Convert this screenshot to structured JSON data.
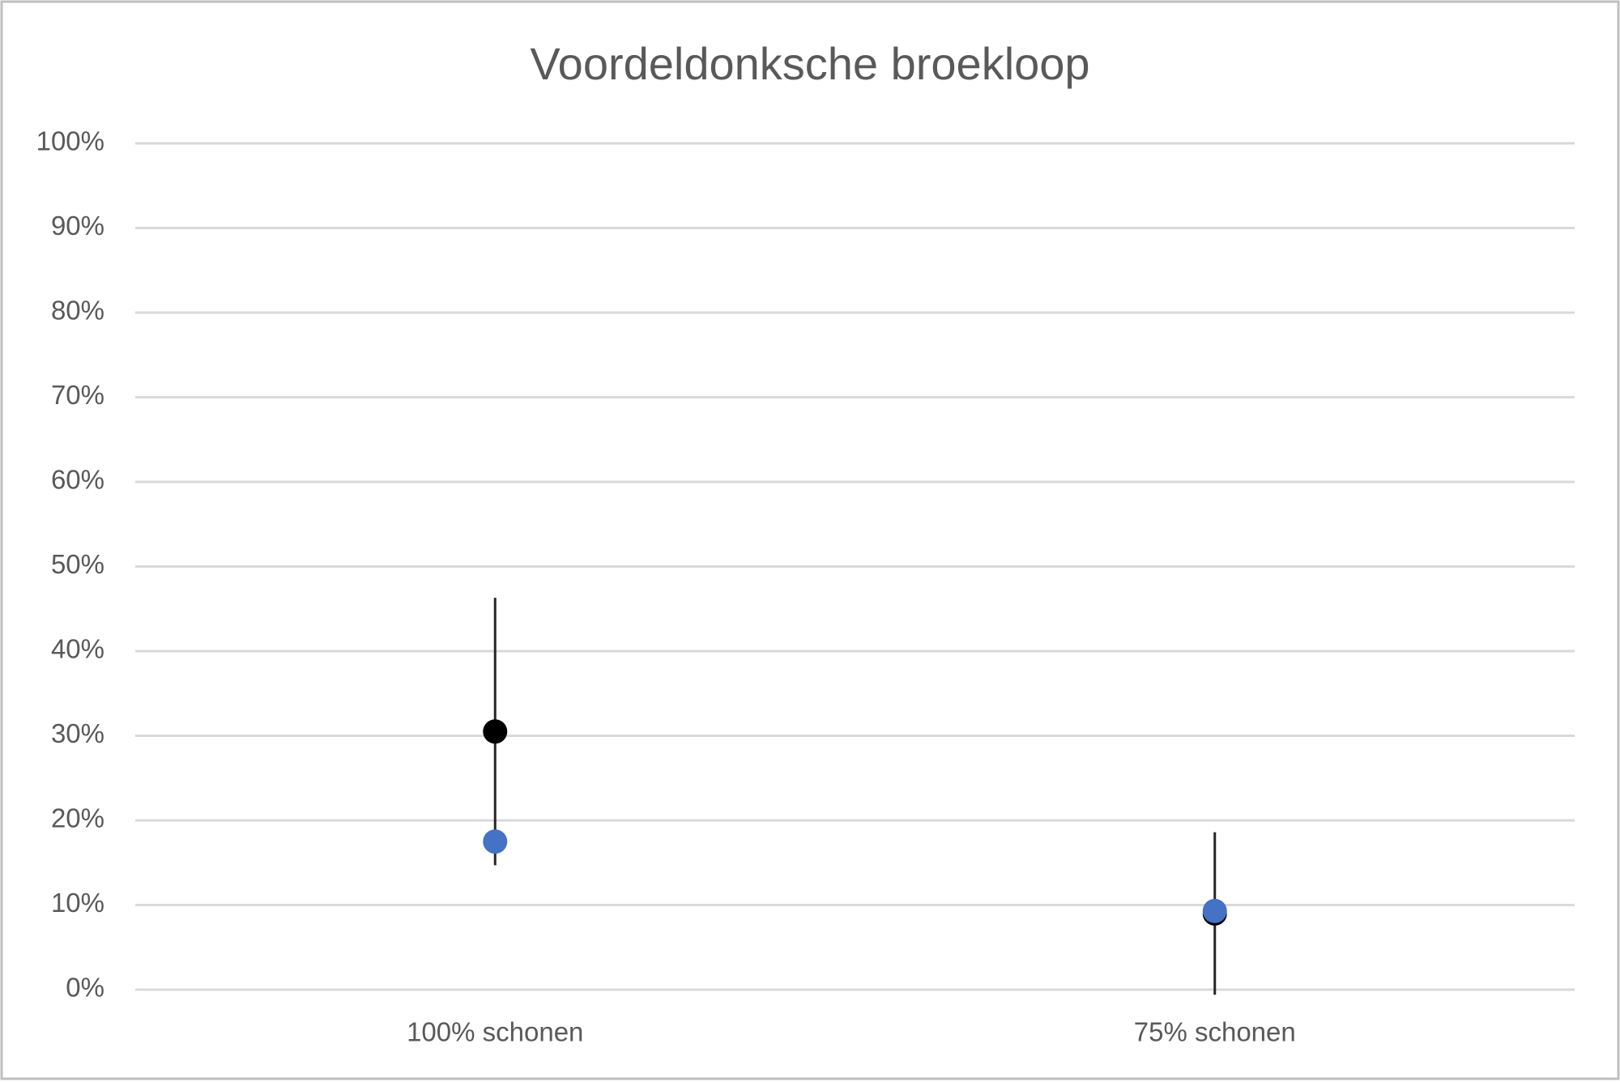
{
  "chart_data": {
    "type": "dot",
    "title": "Voordeldonksche broekloop",
    "categories": [
      "100% schonen",
      "75% schonen"
    ],
    "series": [
      {
        "color": "#000000",
        "values": [
          30.5,
          9
        ],
        "errors": [
          15.8,
          9.6
        ]
      },
      {
        "color": "#4472c4",
        "values": [
          17.5,
          9.3
        ]
      }
    ],
    "ylim": [
      0,
      100
    ],
    "yticks": [
      {
        "value": 0,
        "label": "0%"
      },
      {
        "value": 10,
        "label": "10%"
      },
      {
        "value": 20,
        "label": "20%"
      },
      {
        "value": 30,
        "label": "30%"
      },
      {
        "value": 40,
        "label": "40%"
      },
      {
        "value": 50,
        "label": "50%"
      },
      {
        "value": 60,
        "label": "60%"
      },
      {
        "value": 70,
        "label": "70%"
      },
      {
        "value": 80,
        "label": "80%"
      },
      {
        "value": 90,
        "label": "90%"
      },
      {
        "value": 100,
        "label": "100%"
      }
    ],
    "grid": true
  }
}
